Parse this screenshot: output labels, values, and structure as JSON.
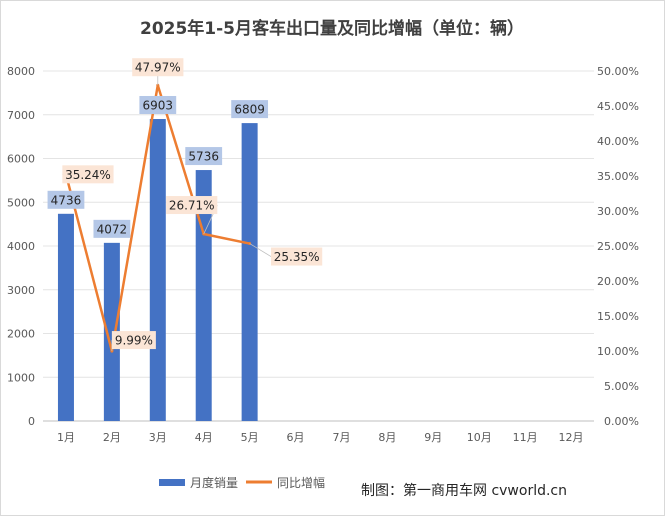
{
  "chart_data": {
    "type": "bar+line",
    "title": "2025年1-5月客车出口量及同比增幅（单位：辆）",
    "categories": [
      "1月",
      "2月",
      "3月",
      "4月",
      "5月",
      "6月",
      "7月",
      "8月",
      "9月",
      "10月",
      "11月",
      "12月"
    ],
    "series": [
      {
        "name": "月度销量",
        "kind": "bar",
        "axis": "left",
        "color": "#4472c4",
        "values": [
          4736,
          4072,
          6903,
          5736,
          6809,
          null,
          null,
          null,
          null,
          null,
          null,
          null
        ],
        "labels": [
          "4736",
          "4072",
          "6903",
          "5736",
          "6809"
        ]
      },
      {
        "name": "同比增幅",
        "kind": "line",
        "axis": "right",
        "color": "#ed7d31",
        "values": [
          35.24,
          9.99,
          47.97,
          26.71,
          25.35,
          null,
          null,
          null,
          null,
          null,
          null,
          null
        ],
        "labels": [
          "35.24%",
          "9.99%",
          "47.97%",
          "26.71%",
          "25.35%"
        ]
      }
    ],
    "y_left": {
      "min": 0,
      "max": 8000,
      "ticks": [
        "0",
        "1000",
        "2000",
        "3000",
        "4000",
        "5000",
        "6000",
        "7000",
        "8000"
      ]
    },
    "y_right": {
      "min": 0,
      "max": 50,
      "ticks": [
        "0.00%",
        "5.00%",
        "10.00%",
        "15.00%",
        "20.00%",
        "25.00%",
        "30.00%",
        "35.00%",
        "40.00%",
        "45.00%",
        "50.00%"
      ]
    },
    "grid": true,
    "legend_position": "bottom",
    "source_note": "制图：第一商用车网 cvworld.cn"
  }
}
